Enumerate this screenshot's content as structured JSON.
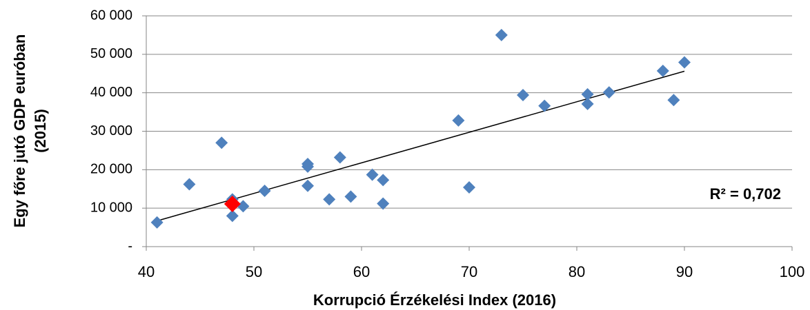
{
  "chart_data": {
    "type": "scatter",
    "xlabel": "Korrupció Érzékelési Index (2016)",
    "ylabel": [
      "Egy főre jutó GDP euróban",
      "(2015)"
    ],
    "annotation": "R² = 0,702",
    "xlim": [
      40,
      100
    ],
    "xticks": [
      40,
      50,
      60,
      70,
      80,
      90,
      100
    ],
    "ylim": [
      0,
      60000
    ],
    "yticks": [
      {
        "value": 0,
        "label": "-"
      },
      {
        "value": 10000,
        "label": "10 000"
      },
      {
        "value": 20000,
        "label": "20 000"
      },
      {
        "value": 30000,
        "label": "30 000"
      },
      {
        "value": 40000,
        "label": "40 000"
      },
      {
        "value": 50000,
        "label": "50 000"
      },
      {
        "value": 60000,
        "label": "60 000"
      }
    ],
    "grid": true,
    "series": [
      {
        "color": "#4f81bd",
        "x": [
          41,
          44,
          47,
          48,
          48,
          49,
          51,
          55,
          55,
          55,
          57,
          58,
          59,
          61,
          62,
          62,
          69,
          70,
          73,
          75,
          77,
          81,
          81,
          83,
          88,
          89,
          90
        ],
        "values": [
          6300,
          16200,
          27000,
          12300,
          8000,
          10500,
          14500,
          21500,
          20800,
          15800,
          12300,
          23200,
          13000,
          18700,
          17300,
          11200,
          32800,
          15400,
          55000,
          39400,
          36600,
          39600,
          37100,
          40100,
          45700,
          38100,
          47900
        ]
      },
      {
        "color": "#ff0000",
        "x": [
          48
        ],
        "values": [
          11100
        ]
      }
    ],
    "trendline": {
      "color": "#000000",
      "x": [
        41,
        90
      ],
      "values": [
        6700,
        45600
      ]
    }
  }
}
